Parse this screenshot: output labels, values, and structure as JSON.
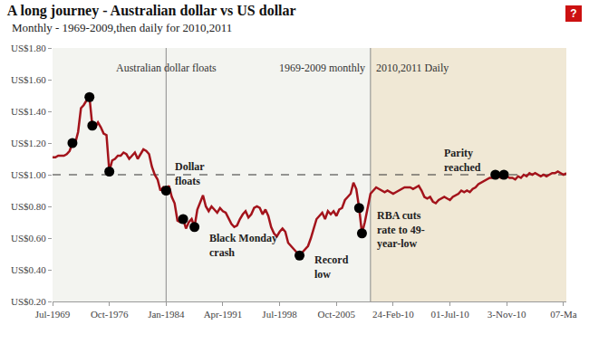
{
  "chart_data": {
    "type": "line",
    "title": "A long journey - Australian dollar vs US dollar",
    "subtitle": "Monthly - 1969-2009,then daily for 2010,2011",
    "help_icon": "?",
    "categories": [
      "Jul-1969",
      null,
      null,
      null,
      null,
      null,
      null,
      null,
      null,
      null,
      null,
      null,
      null,
      null,
      null,
      null,
      null,
      null,
      null,
      null,
      "Oct-1976",
      null,
      null,
      null,
      null,
      null,
      null,
      null,
      null,
      null,
      null,
      null,
      null,
      null,
      null,
      null,
      null,
      null,
      null,
      null,
      "Jan-1984",
      null,
      null,
      null,
      null,
      null,
      null,
      null,
      null,
      null,
      null,
      null,
      null,
      null,
      null,
      null,
      null,
      null,
      null,
      null,
      "Apr-1991",
      null,
      null,
      null,
      null,
      null,
      null,
      null,
      null,
      null,
      null,
      null,
      null,
      null,
      null,
      null,
      null,
      null,
      null,
      null,
      "Jul-1998",
      null,
      null,
      null,
      null,
      null,
      null,
      null,
      null,
      null,
      null,
      null,
      null,
      null,
      null,
      null,
      null,
      null,
      null,
      null,
      "Oct-2005",
      null,
      null,
      null,
      null,
      null,
      null,
      null,
      null,
      null,
      null,
      null,
      null,
      null,
      null,
      null,
      null,
      null,
      null,
      null,
      "24-Feb-10",
      null,
      null,
      null,
      null,
      null,
      null,
      null,
      null,
      null,
      null,
      null,
      null,
      null,
      null,
      null,
      null,
      null,
      null,
      null,
      "01-Jul-10",
      null,
      null,
      null,
      null,
      null,
      null,
      null,
      null,
      null,
      null,
      null,
      null,
      null,
      null,
      null,
      null,
      null,
      null,
      null,
      "3-Nov-10",
      null,
      null,
      null,
      null,
      null,
      null,
      null,
      null,
      null,
      null,
      null,
      null,
      null,
      null,
      null,
      null,
      null,
      null,
      null,
      "07-Ma",
      null
    ],
    "values": [
      1.11,
      1.11,
      1.12,
      1.12,
      1.12,
      1.13,
      1.15,
      1.2,
      1.2,
      1.27,
      1.42,
      1.44,
      1.47,
      1.49,
      1.31,
      1.3,
      1.33,
      1.3,
      1.26,
      1.25,
      1.02,
      1.09,
      1.1,
      1.12,
      1.12,
      1.14,
      1.13,
      1.1,
      1.12,
      1.14,
      1.1,
      1.13,
      1.16,
      1.15,
      1.13,
      1.05,
      1.0,
      0.97,
      0.9,
      0.92,
      0.9,
      0.93,
      0.86,
      0.82,
      0.71,
      0.7,
      0.72,
      0.66,
      0.7,
      0.72,
      0.67,
      0.78,
      0.82,
      0.87,
      0.8,
      0.77,
      0.8,
      0.78,
      0.76,
      0.79,
      0.77,
      0.76,
      0.72,
      0.69,
      0.67,
      0.68,
      0.72,
      0.75,
      0.77,
      0.73,
      0.75,
      0.79,
      0.8,
      0.79,
      0.75,
      0.78,
      0.74,
      0.67,
      0.63,
      0.61,
      0.64,
      0.66,
      0.64,
      0.57,
      0.55,
      0.53,
      0.51,
      0.49,
      0.51,
      0.53,
      0.55,
      0.6,
      0.66,
      0.72,
      0.74,
      0.76,
      0.72,
      0.77,
      0.75,
      0.77,
      0.74,
      0.78,
      0.79,
      0.84,
      0.86,
      0.88,
      0.95,
      0.91,
      0.79,
      0.63,
      0.7,
      0.8,
      0.88,
      0.9,
      0.92,
      0.91,
      0.9,
      0.89,
      0.9,
      0.89,
      0.88,
      0.89,
      0.9,
      0.91,
      0.92,
      0.92,
      0.92,
      0.91,
      0.92,
      0.93,
      0.9,
      0.86,
      0.85,
      0.86,
      0.83,
      0.82,
      0.84,
      0.85,
      0.86,
      0.85,
      0.84,
      0.86,
      0.87,
      0.88,
      0.9,
      0.89,
      0.9,
      0.89,
      0.91,
      0.92,
      0.94,
      0.95,
      0.96,
      0.97,
      0.98,
      0.98,
      1.0,
      0.99,
      0.98,
      1.0,
      0.99,
      0.98,
      0.98,
      0.97,
      0.99,
      0.98,
      1.0,
      0.99,
      1.01,
      1.0,
      1.01,
      1.0,
      0.99,
      1.0,
      0.99,
      1.0,
      1.01,
      1.01,
      1.02,
      1.01,
      1.0,
      1.01
    ],
    "color": "#a3131b",
    "ylim": [
      0.2,
      1.8
    ],
    "yticks": [
      {
        "value": 0.2,
        "label": "US$0.20"
      },
      {
        "value": 0.4,
        "label": "US$0.40"
      },
      {
        "value": 0.6,
        "label": "US$0.60"
      },
      {
        "value": 0.8,
        "label": "US$0.80"
      },
      {
        "value": 1.0,
        "label": "US$1.00"
      },
      {
        "value": 1.2,
        "label": "US$1.20"
      },
      {
        "value": 1.4,
        "label": "US$1.40"
      },
      {
        "value": 1.6,
        "label": "US$1.60"
      },
      {
        "value": 1.8,
        "label": "US$1.80"
      }
    ],
    "grid": false,
    "reference_line": 1.0,
    "highlights": {
      "points": [
        7,
        13,
        14,
        20,
        40,
        46,
        50,
        87,
        108,
        109,
        156,
        159
      ],
      "color": "#000000",
      "marker": "circle"
    },
    "dividers": [
      {
        "x": 40,
        "label": "Australian dollar floats"
      },
      {
        "x": 112,
        "label_left": "1969-2009 monthly",
        "label_right": "2010,2011 Daily"
      }
    ],
    "annotations": [
      {
        "point": 40,
        "text": "Dollar\nfloats"
      },
      {
        "point": 50,
        "text": "Black Monday\ncrash"
      },
      {
        "point": 87,
        "text": "Record\nlow"
      },
      {
        "point": 109,
        "text": "RBA cuts\nrate to 49-\nyear-low"
      },
      {
        "point": 156,
        "text": "Parity\nreached"
      }
    ]
  }
}
